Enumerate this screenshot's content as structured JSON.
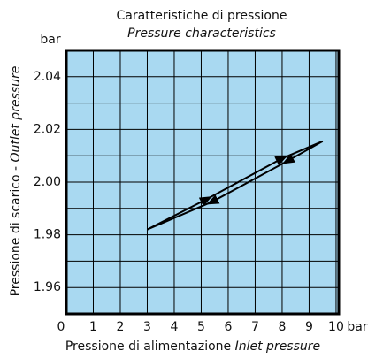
{
  "chart_data": {
    "type": "line",
    "title": "Caratteristiche di pressione",
    "subtitle": "Pressure characteristics",
    "xlabel": {
      "text": "Pressione di alimentazione",
      "italic": "Inlet pressure"
    },
    "ylabel": {
      "text": "Pressione di scarico -",
      "italic": "Outlet pressure"
    },
    "xunit": "bar",
    "yunit": "bar",
    "xlim": [
      0,
      10.1
    ],
    "ylim": [
      1.95,
      2.05
    ],
    "xticks": [
      0,
      1,
      2,
      3,
      4,
      5,
      6,
      7,
      8,
      9,
      10
    ],
    "yticks": [
      1.96,
      1.98,
      2.0,
      2.02,
      2.04
    ],
    "ytick_labels": [
      "1.96",
      "1.98",
      "2.00",
      "2.02",
      "2.04"
    ],
    "ygrid": [
      1.96,
      1.97,
      1.98,
      1.99,
      2.0,
      2.01,
      2.02,
      2.03,
      2.04
    ],
    "grid": true,
    "background": "#a9d9f1",
    "series": [
      {
        "color": "#000000",
        "x": [
          3,
          5.2,
          8,
          9.5
        ],
        "values": [
          1.982,
          1.9935,
          2.009,
          2.0155
        ]
      },
      {
        "color": "#000000",
        "x": [
          9.5,
          8.2,
          5.4,
          3
        ],
        "values": [
          2.0155,
          2.008,
          1.9925,
          1.982
        ]
      }
    ]
  }
}
